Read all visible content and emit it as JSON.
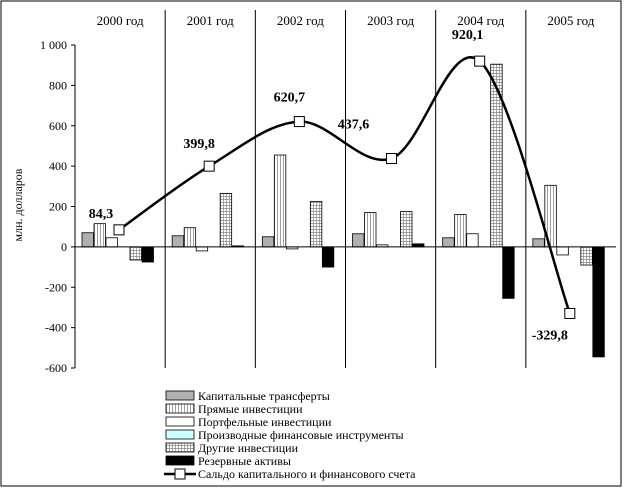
{
  "chart_data": {
    "type": "bar",
    "title": "",
    "xlabel": "",
    "ylabel": "млн. долларов",
    "ylim": [
      -600,
      1000
    ],
    "yticks": [
      -600,
      -400,
      -200,
      0,
      200,
      400,
      600,
      800,
      1000
    ],
    "ytick_labels": [
      "-600",
      "-400",
      "-200",
      "0",
      "200",
      "400",
      "600",
      "800",
      "1 000"
    ],
    "grid": false,
    "legend_position": "bottom",
    "categories": [
      "2000 год",
      "2001 год",
      "2002 год",
      "2003 год",
      "2004 год",
      "2005 год"
    ],
    "series": [
      {
        "name": "Капитальные трансферты",
        "kind": "bar",
        "fill": "#b0b0b0",
        "values": [
          70,
          55,
          50,
          65,
          45,
          40
        ]
      },
      {
        "name": "Прямые инвестиции",
        "kind": "bar",
        "fill": "vstripe",
        "values": [
          115,
          95,
          455,
          170,
          160,
          305
        ]
      },
      {
        "name": "Портфельные инвестиции",
        "kind": "bar",
        "fill": "#ffffff",
        "values": [
          45,
          -20,
          -10,
          10,
          65,
          -40
        ]
      },
      {
        "name": "Производные финансовые инструменты",
        "kind": "bar",
        "fill": "#ccffff",
        "values": [
          0,
          0,
          0,
          0,
          0,
          0
        ]
      },
      {
        "name": "Другие инвестиции",
        "kind": "bar",
        "fill": "grid",
        "values": [
          -65,
          265,
          225,
          175,
          905,
          -90
        ]
      },
      {
        "name": "Резервные активы",
        "kind": "bar",
        "fill": "#000000",
        "values": [
          -75,
          5,
          -100,
          15,
          -255,
          -545
        ]
      },
      {
        "name": "Сальдо капитального и финансового счета",
        "kind": "line",
        "values": [
          84.3,
          399.8,
          620.7,
          437.6,
          920.1,
          -329.8
        ],
        "labels": [
          "84,3",
          "399,8",
          "620,7",
          "437,6",
          "920,1",
          "-329,8"
        ]
      }
    ]
  }
}
